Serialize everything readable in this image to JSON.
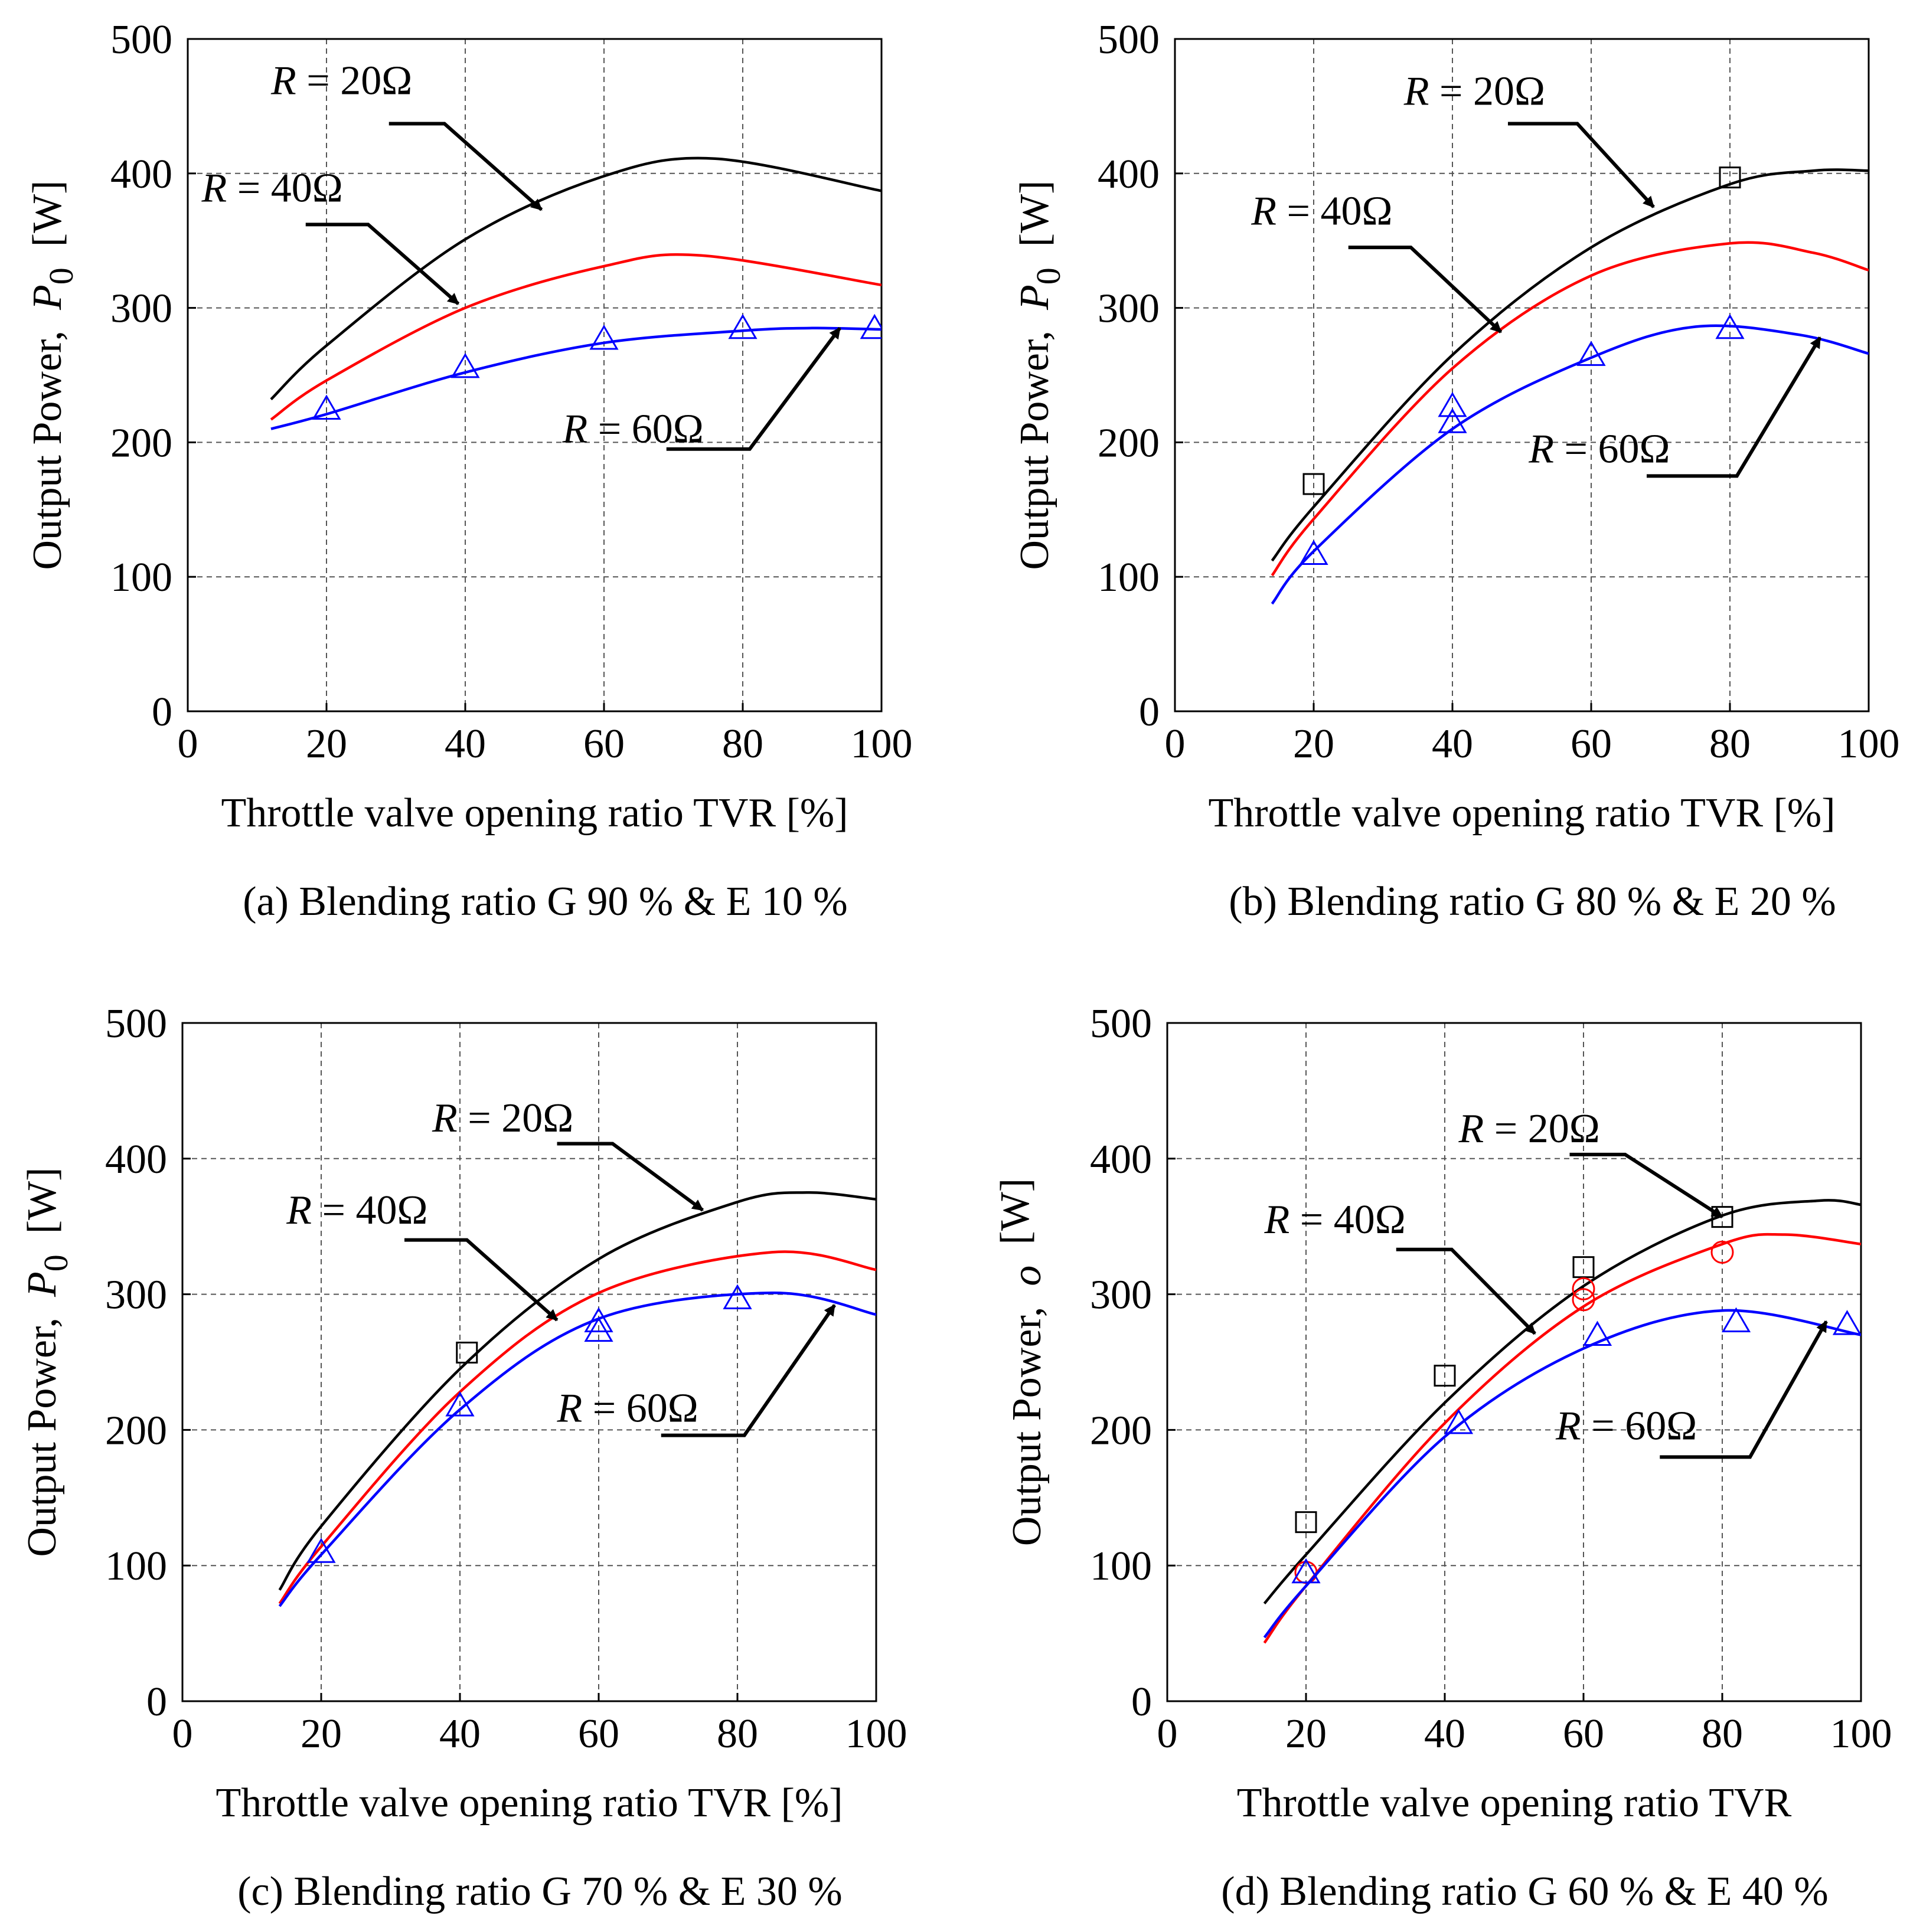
{
  "chart_data": [
    {
      "type": "line",
      "caption": "(a) Blending ratio G 90 % & E 10 %",
      "xlabel": "Throttle valve opening ratio TVR [%]",
      "ylabel": "Output Power,",
      "ylabel_symbol": "P",
      "ylabel_subscript": "0",
      "ylabel_unit": "[W]",
      "xlim": [
        0,
        100
      ],
      "ylim": [
        0,
        500
      ],
      "xticks": [
        "0",
        "20",
        "40",
        "60",
        "80",
        "100"
      ],
      "yticks": [
        "0",
        "100",
        "200",
        "300",
        "400",
        "500"
      ],
      "grid": true,
      "series": [
        {
          "key": "R20",
          "color": "#000000",
          "fit": {
            "x": [
              12,
              20,
              40,
              60,
              76,
              100
            ],
            "y": [
              232,
              272,
              351,
              398,
              411,
              387
            ]
          },
          "points": [],
          "marker": "square"
        },
        {
          "key": "R40",
          "color": "#ff0000",
          "fit": {
            "x": [
              12,
              20,
              40,
              60,
              74,
              100
            ],
            "y": [
              217,
              246,
              300,
              331,
              339,
              317
            ]
          },
          "points": [],
          "marker": "circle"
        },
        {
          "key": "R60",
          "color": "#0000ff",
          "fit": {
            "x": [
              12,
              20,
              40,
              60,
              80,
              90,
              100
            ],
            "y": [
              210,
              221,
              252,
              274,
              283,
              285,
              284
            ]
          },
          "points": [
            [
              20,
              225
            ],
            [
              40,
              256
            ],
            [
              60,
              277
            ],
            [
              80,
              285
            ],
            [
              99,
              285
            ]
          ],
          "marker": "triangle"
        }
      ],
      "annotations": [
        {
          "r": "R",
          "text": " = 20Ω",
          "tx": 12,
          "ty": 459,
          "ux1": 29,
          "ux2": 37,
          "uy": 437,
          "ax": 51,
          "ay": 373
        },
        {
          "r": "R",
          "text": " = 40Ω",
          "tx": 2,
          "ty": 379,
          "ux1": 17,
          "ux2": 26,
          "uy": 362,
          "ax": 39,
          "ay": 303
        },
        {
          "r": "R",
          "text": " = 60Ω",
          "tx": 54,
          "ty": 200,
          "ux1": 69,
          "ux2": 81,
          "uy": 195,
          "ax": 94,
          "ay": 285
        }
      ]
    },
    {
      "type": "line",
      "caption": "(b) Blending ratio G 80 % & E 20 %",
      "xlabel": "Throttle valve opening ratio TVR [%]",
      "ylabel": "Output Power,",
      "ylabel_symbol": "P",
      "ylabel_subscript": "0",
      "ylabel_unit": "[W]",
      "xlim": [
        0,
        100
      ],
      "ylim": [
        0,
        500
      ],
      "xticks": [
        "0",
        "20",
        "40",
        "60",
        "80",
        "100"
      ],
      "yticks": [
        "0",
        "100",
        "200",
        "300",
        "400",
        "500"
      ],
      "grid": true,
      "series": [
        {
          "key": "R20",
          "color": "#000000",
          "fit": {
            "x": [
              14,
              20,
              40,
              60,
              80,
              92,
              100
            ],
            "y": [
              112,
              152,
              265,
              345,
              392,
              402,
              402
            ]
          },
          "points": [
            [
              20,
              169
            ],
            [
              80,
              397
            ]
          ],
          "marker": "square"
        },
        {
          "key": "R40",
          "color": "#ff0000",
          "fit": {
            "x": [
              14,
              20,
              40,
              60,
              80,
              92,
              100
            ],
            "y": [
              101,
              143,
              255,
              324,
              348,
              341,
              328
            ]
          },
          "points": [],
          "marker": "circle"
        },
        {
          "key": "R60",
          "color": "#0000ff",
          "fit": {
            "x": [
              14,
              20,
              40,
              60,
              75,
              90,
              100
            ],
            "y": [
              80,
              119,
              210,
              263,
              286,
              280,
              266
            ]
          },
          "points": [
            [
              20,
              117
            ],
            [
              40,
              227
            ],
            [
              40,
              215
            ],
            [
              60,
              265
            ],
            [
              80,
              285
            ]
          ],
          "marker": "triangle"
        }
      ],
      "annotations": [
        {
          "r": "R",
          "text": " = 20Ω",
          "tx": 33,
          "ty": 451,
          "ux1": 48,
          "ux2": 58,
          "uy": 437,
          "ax": 69,
          "ay": 375
        },
        {
          "r": "R",
          "text": " = 40Ω",
          "tx": 11,
          "ty": 362,
          "ux1": 25,
          "ux2": 34,
          "uy": 345,
          "ax": 47,
          "ay": 282
        },
        {
          "r": "R",
          "text": " = 60Ω",
          "tx": 51,
          "ty": 185,
          "ux1": 68,
          "ux2": 81,
          "uy": 175,
          "ax": 93,
          "ay": 278
        }
      ]
    },
    {
      "type": "line",
      "caption": "(c) Blending ratio G 70 % & E 30 %",
      "xlabel": "Throttle valve opening ratio TVR [%]",
      "ylabel": "Output Power,",
      "ylabel_symbol": "P",
      "ylabel_subscript": "0",
      "ylabel_unit": "[W]",
      "xlim": [
        0,
        100
      ],
      "ylim": [
        0,
        500
      ],
      "xticks": [
        "0",
        "20",
        "40",
        "60",
        "80",
        "100"
      ],
      "yticks": [
        "0",
        "100",
        "200",
        "300",
        "400",
        "500"
      ],
      "grid": true,
      "series": [
        {
          "key": "R20",
          "color": "#000000",
          "fit": {
            "x": [
              14,
              20,
              40,
              60,
              80,
              90,
              100
            ],
            "y": [
              82,
              129,
              245,
              326,
              368,
              375,
              370
            ]
          },
          "points": [
            [
              41,
              257
            ]
          ],
          "marker": "square"
        },
        {
          "key": "R40",
          "color": "#ff0000",
          "fit": {
            "x": [
              14,
              20,
              40,
              60,
              85,
              100
            ],
            "y": [
              72,
              114,
              228,
              301,
              331,
              318
            ]
          },
          "points": [],
          "marker": "circle"
        },
        {
          "key": "R60",
          "color": "#0000ff",
          "fit": {
            "x": [
              14,
              20,
              40,
              60,
              85,
              100
            ],
            "y": [
              70,
              108,
              215,
              282,
              301,
              285
            ]
          },
          "points": [
            [
              20,
              110
            ],
            [
              40,
              218
            ],
            [
              60,
              280
            ],
            [
              60,
              273
            ],
            [
              80,
              297
            ]
          ],
          "marker": "triangle"
        }
      ],
      "annotations": [
        {
          "r": "R",
          "text": " = 20Ω",
          "tx": 36,
          "ty": 420,
          "ux1": 54,
          "ux2": 62,
          "uy": 411,
          "ax": 75,
          "ay": 362
        },
        {
          "r": "R",
          "text": " = 40Ω",
          "tx": 15,
          "ty": 352,
          "ux1": 32,
          "ux2": 41,
          "uy": 340,
          "ax": 54,
          "ay": 281
        },
        {
          "r": "R",
          "text": " = 60Ω",
          "tx": 54,
          "ty": 206,
          "ux1": 69,
          "ux2": 81,
          "uy": 196,
          "ax": 94,
          "ay": 292
        }
      ]
    },
    {
      "type": "line",
      "caption": "(d) Blending ratio G 60 % & E 40 %",
      "xlabel": "Throttle valve opening ratio TVR",
      "ylabel": "Output Power,",
      "ylabel_symbol": "o",
      "ylabel_subscript": "",
      "ylabel_unit": "[W]",
      "xlim": [
        0,
        100
      ],
      "ylim": [
        0,
        500
      ],
      "xticks": [
        "0",
        "20",
        "40",
        "60",
        "80",
        "100"
      ],
      "yticks": [
        "0",
        "100",
        "200",
        "300",
        "400",
        "500"
      ],
      "grid": true,
      "series": [
        {
          "key": "R20",
          "color": "#000000",
          "fit": {
            "x": [
              14,
              20,
              40,
              60,
              80,
              94,
              100
            ],
            "y": [
              72,
              108,
              220,
              306,
              358,
              369,
              366
            ]
          },
          "points": [
            [
              20,
              132
            ],
            [
              40,
              240
            ],
            [
              60,
              320
            ],
            [
              80,
              357
            ]
          ],
          "marker": "square"
        },
        {
          "key": "R40",
          "color": "#ff0000",
          "fit": {
            "x": [
              14,
              20,
              40,
              60,
              80,
              89,
              100
            ],
            "y": [
              43,
              85,
              205,
              291,
              337,
              344,
              337
            ]
          },
          "points": [
            [
              20,
              95
            ],
            [
              60,
              304
            ],
            [
              60,
              296
            ],
            [
              80,
              331
            ]
          ],
          "marker": "circle"
        },
        {
          "key": "R60",
          "color": "#0000ff",
          "fit": {
            "x": [
              14,
              20,
              40,
              60,
              80,
              100
            ],
            "y": [
              47,
              85,
              195,
              260,
              288,
              270
            ]
          },
          "points": [
            [
              20,
              95
            ],
            [
              42,
              205
            ],
            [
              62,
              270
            ],
            [
              82,
              280
            ],
            [
              98,
              278
            ]
          ],
          "marker": "triangle"
        }
      ],
      "annotations": [
        {
          "r": "R",
          "text": " = 20Ω",
          "tx": 42,
          "ty": 412,
          "ux1": 58,
          "ux2": 66,
          "uy": 403,
          "ax": 80,
          "ay": 357
        },
        {
          "r": "R",
          "text": " = 40Ω",
          "tx": 14,
          "ty": 345,
          "ux1": 33,
          "ux2": 41,
          "uy": 333,
          "ax": 53,
          "ay": 271
        },
        {
          "r": "R",
          "text": " = 60Ω",
          "tx": 56,
          "ty": 193,
          "ux1": 71,
          "ux2": 84,
          "uy": 180,
          "ax": 95,
          "ay": 280
        }
      ]
    }
  ]
}
